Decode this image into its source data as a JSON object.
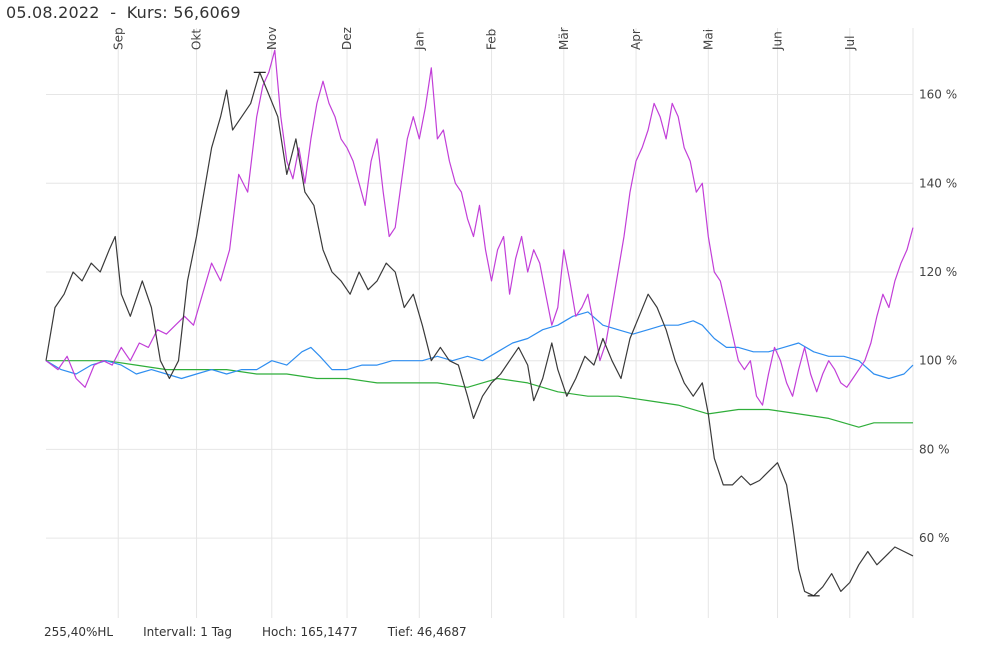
{
  "header": {
    "date": "05.08.2022",
    "separator": "-",
    "kurs_label": "Kurs:",
    "kurs_value": "56,6069"
  },
  "footer": {
    "hl": "255,40%HL",
    "interval": "Intervall: 1 Tag",
    "high": "Hoch: 165,1477",
    "low": "Tief: 46,4687"
  },
  "chart_data": {
    "type": "line",
    "x_unit": "trading days from Aug 2021 to Aug 2022",
    "months": [
      "Sep",
      "Okt",
      "Nov",
      "Dez",
      "Jan",
      "Feb",
      "Mär",
      "Apr",
      "Mai",
      "Jun",
      "Jul"
    ],
    "yticks": [
      60,
      80,
      100,
      120,
      140,
      160
    ],
    "ytick_labels": [
      "60 %",
      "80 %",
      "100 %",
      "120 %",
      "140 %",
      "160 %"
    ],
    "ylim": [
      42,
      175
    ],
    "grid": true,
    "colors": {
      "dark": "#3a3a3a",
      "magenta": "#c23fd8",
      "blue": "#2f8ef0",
      "green": "#2fae3a",
      "grid": "#e6e6e6"
    },
    "series": [
      {
        "color": "#3a3a3a",
        "points": [
          [
            0,
            100
          ],
          [
            3,
            112
          ],
          [
            6,
            115
          ],
          [
            9,
            120
          ],
          [
            12,
            118
          ],
          [
            15,
            122
          ],
          [
            18,
            120
          ],
          [
            21,
            125
          ],
          [
            23,
            128
          ],
          [
            25,
            115
          ],
          [
            28,
            110
          ],
          [
            32,
            118
          ],
          [
            35,
            112
          ],
          [
            38,
            100
          ],
          [
            41,
            96
          ],
          [
            44,
            100
          ],
          [
            47,
            118
          ],
          [
            50,
            128
          ],
          [
            52,
            136
          ],
          [
            55,
            148
          ],
          [
            58,
            155
          ],
          [
            60,
            161
          ],
          [
            62,
            152
          ],
          [
            65,
            155
          ],
          [
            68,
            158
          ],
          [
            71,
            165
          ],
          [
            74,
            160
          ],
          [
            77,
            155
          ],
          [
            80,
            142
          ],
          [
            83,
            150
          ],
          [
            86,
            138
          ],
          [
            89,
            135
          ],
          [
            92,
            125
          ],
          [
            95,
            120
          ],
          [
            98,
            118
          ],
          [
            101,
            115
          ],
          [
            104,
            120
          ],
          [
            107,
            116
          ],
          [
            110,
            118
          ],
          [
            113,
            122
          ],
          [
            116,
            120
          ],
          [
            119,
            112
          ],
          [
            122,
            115
          ],
          [
            125,
            108
          ],
          [
            128,
            100
          ],
          [
            131,
            103
          ],
          [
            134,
            100
          ],
          [
            137,
            99
          ],
          [
            140,
            92
          ],
          [
            142,
            87
          ],
          [
            145,
            92
          ],
          [
            148,
            95
          ],
          [
            151,
            97
          ],
          [
            154,
            100
          ],
          [
            157,
            103
          ],
          [
            160,
            99
          ],
          [
            162,
            91
          ],
          [
            165,
            96
          ],
          [
            168,
            104
          ],
          [
            170,
            98
          ],
          [
            173,
            92
          ],
          [
            176,
            96
          ],
          [
            179,
            101
          ],
          [
            182,
            99
          ],
          [
            185,
            105
          ],
          [
            188,
            100
          ],
          [
            191,
            96
          ],
          [
            194,
            105
          ],
          [
            197,
            110
          ],
          [
            200,
            115
          ],
          [
            203,
            112
          ],
          [
            206,
            107
          ],
          [
            209,
            100
          ],
          [
            212,
            95
          ],
          [
            215,
            92
          ],
          [
            218,
            95
          ],
          [
            220,
            88
          ],
          [
            222,
            78
          ],
          [
            225,
            72
          ],
          [
            228,
            72
          ],
          [
            231,
            74
          ],
          [
            234,
            72
          ],
          [
            237,
            73
          ],
          [
            240,
            75
          ],
          [
            243,
            77
          ],
          [
            246,
            72
          ],
          [
            248,
            63
          ],
          [
            250,
            53
          ],
          [
            252,
            48
          ],
          [
            255,
            47
          ],
          [
            258,
            49
          ],
          [
            261,
            52
          ],
          [
            264,
            48
          ],
          [
            267,
            50
          ],
          [
            270,
            54
          ],
          [
            273,
            57
          ],
          [
            276,
            54
          ],
          [
            279,
            56
          ],
          [
            282,
            58
          ],
          [
            285,
            57
          ],
          [
            288,
            56
          ]
        ]
      },
      {
        "color": "#c23fd8",
        "points": [
          [
            0,
            100
          ],
          [
            4,
            98
          ],
          [
            7,
            101
          ],
          [
            10,
            96
          ],
          [
            13,
            94
          ],
          [
            16,
            99
          ],
          [
            19,
            100
          ],
          [
            22,
            99
          ],
          [
            25,
            103
          ],
          [
            28,
            100
          ],
          [
            31,
            104
          ],
          [
            34,
            103
          ],
          [
            37,
            107
          ],
          [
            40,
            106
          ],
          [
            43,
            108
          ],
          [
            46,
            110
          ],
          [
            49,
            108
          ],
          [
            52,
            115
          ],
          [
            55,
            122
          ],
          [
            58,
            118
          ],
          [
            61,
            125
          ],
          [
            64,
            142
          ],
          [
            67,
            138
          ],
          [
            70,
            155
          ],
          [
            72,
            162
          ],
          [
            74,
            165
          ],
          [
            76,
            170
          ],
          [
            78,
            155
          ],
          [
            80,
            145
          ],
          [
            82,
            141
          ],
          [
            84,
            148
          ],
          [
            86,
            140
          ],
          [
            88,
            150
          ],
          [
            90,
            158
          ],
          [
            92,
            163
          ],
          [
            94,
            158
          ],
          [
            96,
            155
          ],
          [
            98,
            150
          ],
          [
            100,
            148
          ],
          [
            102,
            145
          ],
          [
            104,
            140
          ],
          [
            106,
            135
          ],
          [
            108,
            145
          ],
          [
            110,
            150
          ],
          [
            112,
            138
          ],
          [
            114,
            128
          ],
          [
            116,
            130
          ],
          [
            118,
            140
          ],
          [
            120,
            150
          ],
          [
            122,
            155
          ],
          [
            124,
            150
          ],
          [
            126,
            157
          ],
          [
            128,
            166
          ],
          [
            130,
            150
          ],
          [
            132,
            152
          ],
          [
            134,
            145
          ],
          [
            136,
            140
          ],
          [
            138,
            138
          ],
          [
            140,
            132
          ],
          [
            142,
            128
          ],
          [
            144,
            135
          ],
          [
            146,
            125
          ],
          [
            148,
            118
          ],
          [
            150,
            125
          ],
          [
            152,
            128
          ],
          [
            154,
            115
          ],
          [
            156,
            123
          ],
          [
            158,
            128
          ],
          [
            160,
            120
          ],
          [
            162,
            125
          ],
          [
            164,
            122
          ],
          [
            166,
            115
          ],
          [
            168,
            108
          ],
          [
            170,
            112
          ],
          [
            172,
            125
          ],
          [
            174,
            118
          ],
          [
            176,
            110
          ],
          [
            178,
            112
          ],
          [
            180,
            115
          ],
          [
            182,
            108
          ],
          [
            184,
            100
          ],
          [
            186,
            104
          ],
          [
            188,
            112
          ],
          [
            190,
            120
          ],
          [
            192,
            128
          ],
          [
            194,
            138
          ],
          [
            196,
            145
          ],
          [
            198,
            148
          ],
          [
            200,
            152
          ],
          [
            202,
            158
          ],
          [
            204,
            155
          ],
          [
            206,
            150
          ],
          [
            208,
            158
          ],
          [
            210,
            155
          ],
          [
            212,
            148
          ],
          [
            214,
            145
          ],
          [
            216,
            138
          ],
          [
            218,
            140
          ],
          [
            220,
            128
          ],
          [
            222,
            120
          ],
          [
            224,
            118
          ],
          [
            226,
            112
          ],
          [
            228,
            106
          ],
          [
            230,
            100
          ],
          [
            232,
            98
          ],
          [
            234,
            100
          ],
          [
            236,
            92
          ],
          [
            238,
            90
          ],
          [
            240,
            97
          ],
          [
            242,
            103
          ],
          [
            244,
            100
          ],
          [
            246,
            95
          ],
          [
            248,
            92
          ],
          [
            250,
            98
          ],
          [
            252,
            103
          ],
          [
            254,
            97
          ],
          [
            256,
            93
          ],
          [
            258,
            97
          ],
          [
            260,
            100
          ],
          [
            262,
            98
          ],
          [
            264,
            95
          ],
          [
            266,
            94
          ],
          [
            268,
            96
          ],
          [
            270,
            98
          ],
          [
            272,
            100
          ],
          [
            274,
            104
          ],
          [
            276,
            110
          ],
          [
            278,
            115
          ],
          [
            280,
            112
          ],
          [
            282,
            118
          ],
          [
            284,
            122
          ],
          [
            286,
            125
          ],
          [
            288,
            130
          ]
        ]
      },
      {
        "color": "#2f8ef0",
        "points": [
          [
            0,
            100
          ],
          [
            5,
            98
          ],
          [
            10,
            97
          ],
          [
            15,
            99
          ],
          [
            20,
            100
          ],
          [
            25,
            99
          ],
          [
            30,
            97
          ],
          [
            35,
            98
          ],
          [
            40,
            97
          ],
          [
            45,
            96
          ],
          [
            50,
            97
          ],
          [
            55,
            98
          ],
          [
            60,
            97
          ],
          [
            65,
            98
          ],
          [
            70,
            98
          ],
          [
            75,
            100
          ],
          [
            80,
            99
          ],
          [
            85,
            102
          ],
          [
            88,
            103
          ],
          [
            91,
            101
          ],
          [
            95,
            98
          ],
          [
            100,
            98
          ],
          [
            105,
            99
          ],
          [
            110,
            99
          ],
          [
            115,
            100
          ],
          [
            120,
            100
          ],
          [
            125,
            100
          ],
          [
            130,
            101
          ],
          [
            135,
            100
          ],
          [
            140,
            101
          ],
          [
            145,
            100
          ],
          [
            150,
            102
          ],
          [
            155,
            104
          ],
          [
            160,
            105
          ],
          [
            165,
            107
          ],
          [
            170,
            108
          ],
          [
            175,
            110
          ],
          [
            180,
            111
          ],
          [
            185,
            108
          ],
          [
            190,
            107
          ],
          [
            195,
            106
          ],
          [
            200,
            107
          ],
          [
            205,
            108
          ],
          [
            210,
            108
          ],
          [
            215,
            109
          ],
          [
            218,
            108
          ],
          [
            222,
            105
          ],
          [
            226,
            103
          ],
          [
            230,
            103
          ],
          [
            235,
            102
          ],
          [
            240,
            102
          ],
          [
            245,
            103
          ],
          [
            250,
            104
          ],
          [
            255,
            102
          ],
          [
            260,
            101
          ],
          [
            265,
            101
          ],
          [
            270,
            100
          ],
          [
            275,
            97
          ],
          [
            280,
            96
          ],
          [
            285,
            97
          ],
          [
            288,
            99
          ]
        ]
      },
      {
        "color": "#2fae3a",
        "points": [
          [
            0,
            100
          ],
          [
            10,
            100
          ],
          [
            20,
            100
          ],
          [
            30,
            99
          ],
          [
            40,
            98
          ],
          [
            50,
            98
          ],
          [
            60,
            98
          ],
          [
            70,
            97
          ],
          [
            80,
            97
          ],
          [
            90,
            96
          ],
          [
            100,
            96
          ],
          [
            110,
            95
          ],
          [
            120,
            95
          ],
          [
            130,
            95
          ],
          [
            140,
            94
          ],
          [
            150,
            96
          ],
          [
            160,
            95
          ],
          [
            170,
            93
          ],
          [
            180,
            92
          ],
          [
            190,
            92
          ],
          [
            200,
            91
          ],
          [
            210,
            90
          ],
          [
            220,
            88
          ],
          [
            230,
            89
          ],
          [
            240,
            89
          ],
          [
            250,
            88
          ],
          [
            260,
            87
          ],
          [
            265,
            86
          ],
          [
            270,
            85
          ],
          [
            275,
            86
          ],
          [
            280,
            86
          ],
          [
            288,
            86
          ]
        ]
      }
    ]
  }
}
